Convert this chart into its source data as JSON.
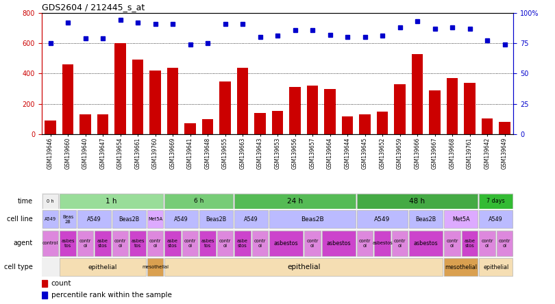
{
  "title": "GDS2604 / 212445_s_at",
  "samples": [
    "GSM139646",
    "GSM139660",
    "GSM139640",
    "GSM139647",
    "GSM139654",
    "GSM139661",
    "GSM139760",
    "GSM139669",
    "GSM139641",
    "GSM139648",
    "GSM139655",
    "GSM139663",
    "GSM139643",
    "GSM139653",
    "GSM139656",
    "GSM139657",
    "GSM139664",
    "GSM139644",
    "GSM139645",
    "GSM139652",
    "GSM139659",
    "GSM139666",
    "GSM139667",
    "GSM139668",
    "GSM139761",
    "GSM139642",
    "GSM139649"
  ],
  "counts": [
    90,
    460,
    130,
    130,
    600,
    490,
    420,
    440,
    75,
    100,
    350,
    440,
    140,
    155,
    310,
    320,
    300,
    120,
    130,
    150,
    330,
    530,
    290,
    370,
    340,
    105,
    80
  ],
  "percentiles": [
    75,
    92,
    79,
    79,
    94,
    92,
    91,
    91,
    74,
    75,
    91,
    91,
    80,
    81,
    86,
    86,
    82,
    80,
    80,
    81,
    88,
    93,
    87,
    88,
    87,
    77,
    74
  ],
  "bar_color": "#cc0000",
  "dot_color": "#0000cc",
  "grid_lines": [
    200,
    400,
    600
  ],
  "time_groups": [
    {
      "label": "0 h",
      "start": 0,
      "end": 1,
      "color": "#eeeeee"
    },
    {
      "label": "1 h",
      "start": 1,
      "end": 7,
      "color": "#99dd99"
    },
    {
      "label": "6 h",
      "start": 7,
      "end": 11,
      "color": "#77cc77"
    },
    {
      "label": "24 h",
      "start": 11,
      "end": 18,
      "color": "#55bb55"
    },
    {
      "label": "48 h",
      "start": 18,
      "end": 25,
      "color": "#44aa44"
    },
    {
      "label": "7 days",
      "start": 25,
      "end": 27,
      "color": "#33bb33"
    }
  ],
  "cell_line_groups": [
    {
      "label": "A549",
      "start": 0,
      "end": 1,
      "color": "#bbbbff"
    },
    {
      "label": "Beas\n2B",
      "start": 1,
      "end": 2,
      "color": "#bbbbff"
    },
    {
      "label": "A549",
      "start": 2,
      "end": 4,
      "color": "#bbbbff"
    },
    {
      "label": "Beas2B",
      "start": 4,
      "end": 6,
      "color": "#bbbbff"
    },
    {
      "label": "Met5A",
      "start": 6,
      "end": 7,
      "color": "#ddaaff"
    },
    {
      "label": "A549",
      "start": 7,
      "end": 9,
      "color": "#bbbbff"
    },
    {
      "label": "Beas2B",
      "start": 9,
      "end": 11,
      "color": "#bbbbff"
    },
    {
      "label": "A549",
      "start": 11,
      "end": 13,
      "color": "#bbbbff"
    },
    {
      "label": "Beas2B",
      "start": 13,
      "end": 18,
      "color": "#bbbbff"
    },
    {
      "label": "A549",
      "start": 18,
      "end": 21,
      "color": "#bbbbff"
    },
    {
      "label": "Beas2B",
      "start": 21,
      "end": 23,
      "color": "#bbbbff"
    },
    {
      "label": "Met5A",
      "start": 23,
      "end": 25,
      "color": "#ddaaff"
    },
    {
      "label": "A549",
      "start": 25,
      "end": 27,
      "color": "#bbbbff"
    }
  ],
  "agent_groups": [
    {
      "label": "control",
      "start": 0,
      "end": 1,
      "color": "#dd88dd"
    },
    {
      "label": "asbes\ntos",
      "start": 1,
      "end": 2,
      "color": "#cc44cc"
    },
    {
      "label": "contr\nol",
      "start": 2,
      "end": 3,
      "color": "#dd88dd"
    },
    {
      "label": "asbe\nstos",
      "start": 3,
      "end": 4,
      "color": "#cc44cc"
    },
    {
      "label": "contr\nol",
      "start": 4,
      "end": 5,
      "color": "#dd88dd"
    },
    {
      "label": "asbes\ntos",
      "start": 5,
      "end": 6,
      "color": "#cc44cc"
    },
    {
      "label": "contr\nol",
      "start": 6,
      "end": 7,
      "color": "#dd88dd"
    },
    {
      "label": "asbe\nstos",
      "start": 7,
      "end": 8,
      "color": "#cc44cc"
    },
    {
      "label": "contr\nol",
      "start": 8,
      "end": 9,
      "color": "#dd88dd"
    },
    {
      "label": "asbes\ntos",
      "start": 9,
      "end": 10,
      "color": "#cc44cc"
    },
    {
      "label": "contr\nol",
      "start": 10,
      "end": 11,
      "color": "#dd88dd"
    },
    {
      "label": "asbe\nstos",
      "start": 11,
      "end": 12,
      "color": "#cc44cc"
    },
    {
      "label": "contr\nol",
      "start": 12,
      "end": 13,
      "color": "#dd88dd"
    },
    {
      "label": "asbestos",
      "start": 13,
      "end": 15,
      "color": "#cc44cc"
    },
    {
      "label": "contr\nol",
      "start": 15,
      "end": 16,
      "color": "#dd88dd"
    },
    {
      "label": "asbestos",
      "start": 16,
      "end": 18,
      "color": "#cc44cc"
    },
    {
      "label": "contr\nol",
      "start": 18,
      "end": 19,
      "color": "#dd88dd"
    },
    {
      "label": "asbestos",
      "start": 19,
      "end": 20,
      "color": "#cc44cc"
    },
    {
      "label": "contr\nol",
      "start": 20,
      "end": 21,
      "color": "#dd88dd"
    },
    {
      "label": "asbestos",
      "start": 21,
      "end": 23,
      "color": "#cc44cc"
    },
    {
      "label": "contr\nol",
      "start": 23,
      "end": 24,
      "color": "#dd88dd"
    },
    {
      "label": "asbe\nstos",
      "start": 24,
      "end": 25,
      "color": "#cc44cc"
    },
    {
      "label": "contr\nol",
      "start": 25,
      "end": 26,
      "color": "#dd88dd"
    },
    {
      "label": "contr\nol",
      "start": 26,
      "end": 27,
      "color": "#dd88dd"
    }
  ],
  "cell_type_groups": [
    {
      "label": "epithelial",
      "start": 1,
      "end": 6,
      "color": "#f5deb3"
    },
    {
      "label": "mesothelial",
      "start": 6,
      "end": 7,
      "color": "#daa050"
    },
    {
      "label": "epithelial",
      "start": 7,
      "end": 23,
      "color": "#f5deb3"
    },
    {
      "label": "mesothelial",
      "start": 23,
      "end": 25,
      "color": "#daa050"
    },
    {
      "label": "epithelial",
      "start": 25,
      "end": 27,
      "color": "#f5deb3"
    }
  ],
  "legend_bar_color": "#cc0000",
  "legend_dot_color": "#0000cc",
  "legend_bar_label": "count",
  "legend_dot_label": "percentile rank within the sample"
}
